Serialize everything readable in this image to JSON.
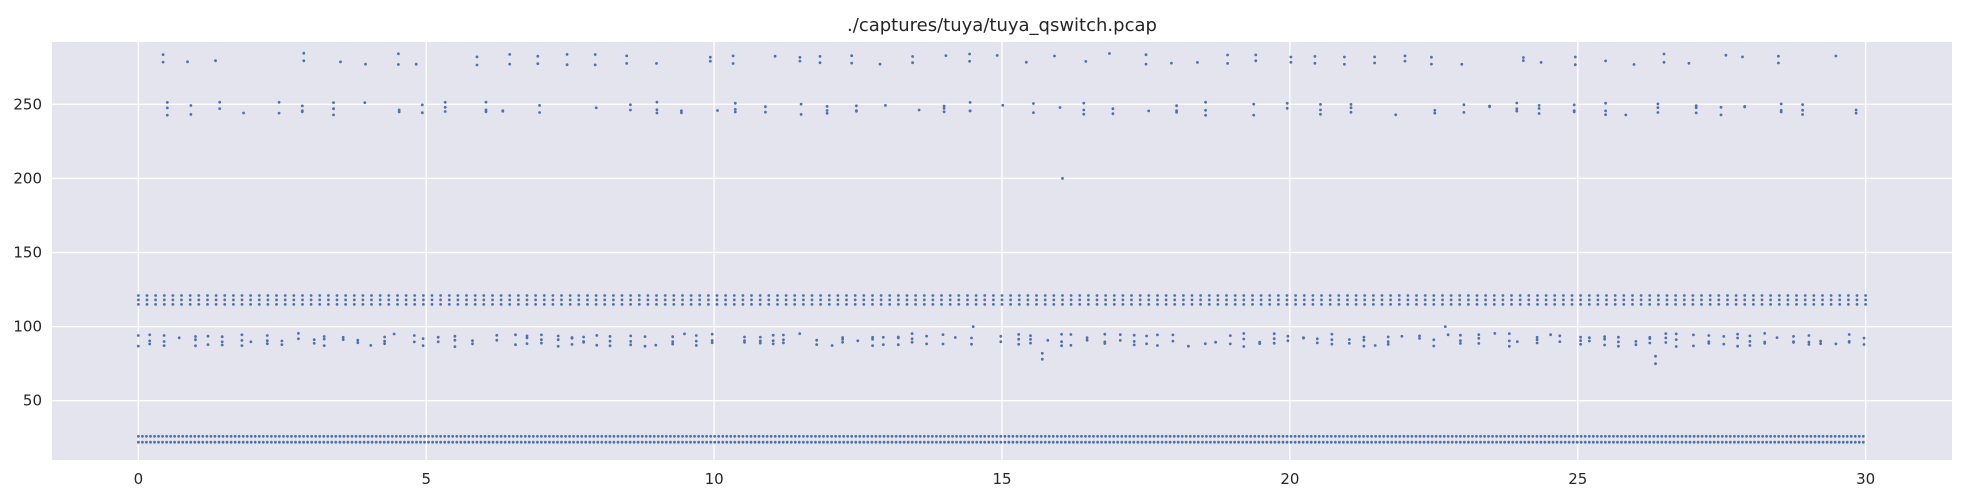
{
  "chart_data": {
    "type": "scatter",
    "title": "./captures/tuya/tuya_qswitch.pcap",
    "xlabel": "",
    "ylabel": "",
    "xlim": [
      -1.5,
      31.5
    ],
    "ylim": [
      10,
      292
    ],
    "xticks": [
      0,
      5,
      10,
      15,
      20,
      25,
      30
    ],
    "xtick_labels": [
      "0",
      "5",
      "10",
      "15",
      "20",
      "25",
      "30"
    ],
    "yticks": [
      50,
      100,
      150,
      200,
      250
    ],
    "ytick_labels": [
      "50",
      "100",
      "150",
      "200",
      "250"
    ],
    "grid": true,
    "legend": "none",
    "background": "#E4E4EE",
    "marker_color": "#4C72B0",
    "bands": [
      {
        "x_start": 0.0,
        "x_end": 30.0,
        "y_values": [
          22,
          26
        ],
        "spacing": 0.07,
        "note": "continuous"
      },
      {
        "x_start": 0.0,
        "x_end": 30.0,
        "y_values": [
          115,
          118,
          121
        ],
        "spacing": 0.15
      },
      {
        "x_start": 0.0,
        "x_end": 30.0,
        "y_values": [
          88,
          91,
          94
        ],
        "spacing": 0.25
      },
      {
        "x_start": 0.45,
        "x_end": 30.0,
        "y_values": [
          244,
          247,
          250
        ],
        "spacing": 0.5
      },
      {
        "x_start": 0.45,
        "x_end": 30.0,
        "y_values": [
          278,
          283
        ],
        "spacing": 0.5
      }
    ],
    "outliers": [
      {
        "x": 16.05,
        "y": 200
      },
      {
        "x": 15.7,
        "y": 78
      },
      {
        "x": 15.7,
        "y": 82
      },
      {
        "x": 26.35,
        "y": 75
      },
      {
        "x": 26.35,
        "y": 80
      },
      {
        "x": 14.5,
        "y": 100
      },
      {
        "x": 22.7,
        "y": 100
      }
    ]
  }
}
